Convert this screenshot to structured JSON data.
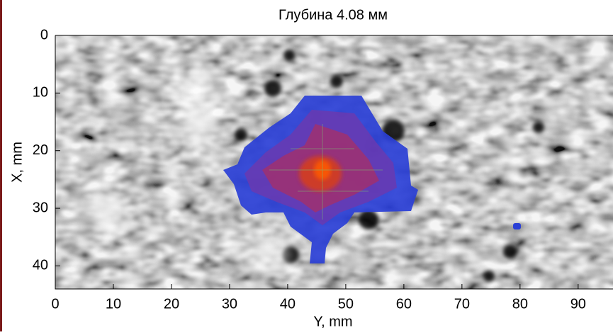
{
  "chart_data": {
    "type": "heatmap",
    "title": "Глубина 4.08 мм",
    "x_label": "Y, mm",
    "y_label": "X, mm",
    "xlim": [
      0,
      96
    ],
    "xticks": [
      0,
      10,
      20,
      30,
      40,
      50,
      60,
      70,
      80,
      90
    ],
    "ylim": [
      0,
      44
    ],
    "yticks": [
      0,
      10,
      20,
      30,
      40
    ],
    "y_reversed": true,
    "grid": false
  }
}
